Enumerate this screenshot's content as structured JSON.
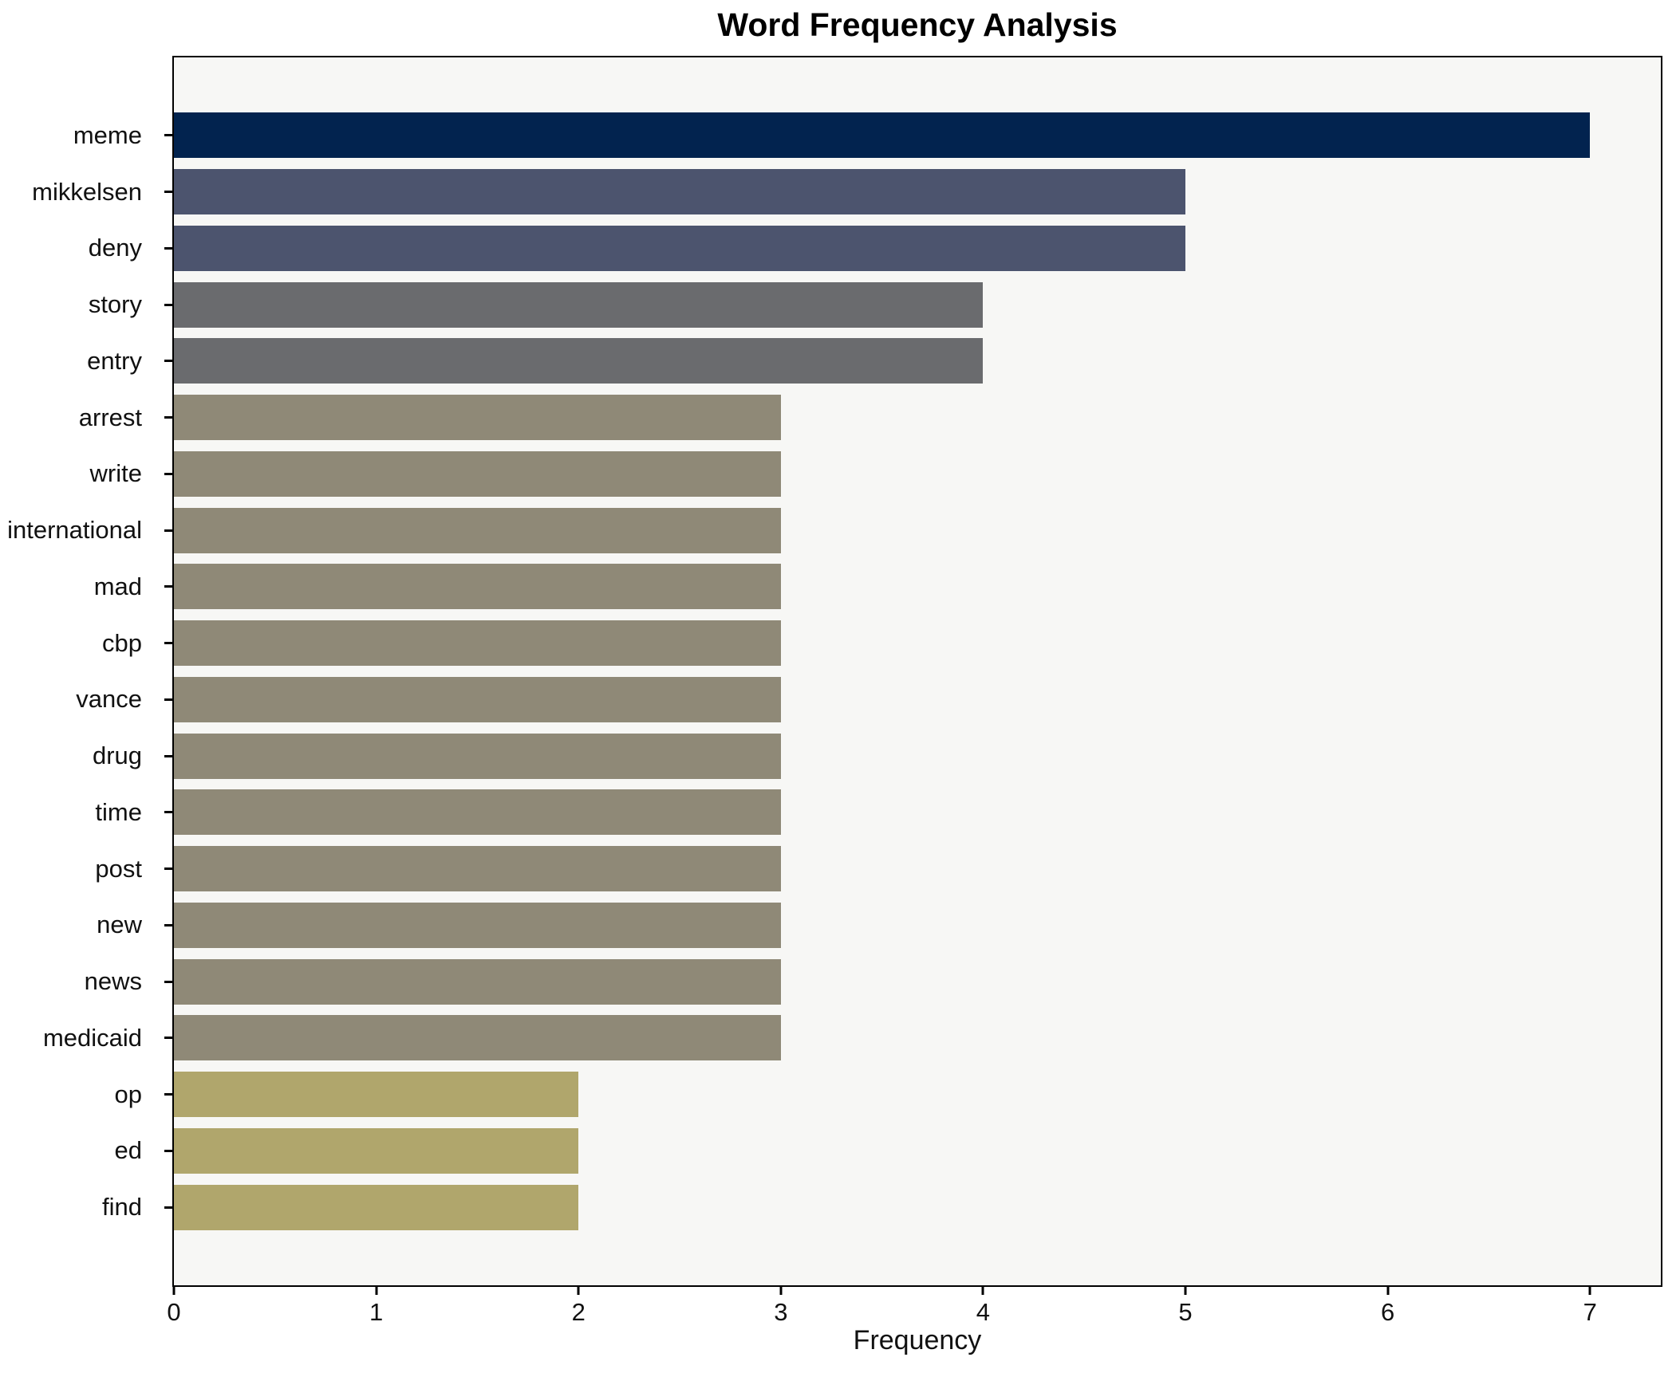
{
  "chart_data": {
    "type": "bar",
    "orientation": "horizontal",
    "title": "Word Frequency Analysis",
    "xlabel": "Frequency",
    "ylabel": "",
    "xlim": [
      0,
      7.35
    ],
    "x_ticks": [
      0,
      1,
      2,
      3,
      4,
      5,
      6,
      7
    ],
    "grid": false,
    "legend": "none",
    "categories": [
      "meme",
      "mikkelsen",
      "deny",
      "story",
      "entry",
      "arrest",
      "write",
      "international",
      "mad",
      "cbp",
      "vance",
      "drug",
      "time",
      "post",
      "new",
      "news",
      "medicaid",
      "op",
      "ed",
      "find"
    ],
    "values": [
      7,
      5,
      5,
      4,
      4,
      3,
      3,
      3,
      3,
      3,
      3,
      3,
      3,
      3,
      3,
      3,
      3,
      2,
      2,
      2
    ],
    "bar_colors": [
      "#02234f",
      "#4c546e",
      "#4c546e",
      "#6a6b6e",
      "#6a6b6e",
      "#8f8977",
      "#8f8977",
      "#8f8977",
      "#8f8977",
      "#8f8977",
      "#8f8977",
      "#8f8977",
      "#8f8977",
      "#8f8977",
      "#8f8977",
      "#8f8977",
      "#8f8977",
      "#b0a66c",
      "#b0a66c",
      "#b0a66c"
    ]
  },
  "style_colors": {
    "plot_background": "#f7f7f5",
    "figure_background": "#ffffff",
    "spine": "#000000",
    "text": "#111111"
  }
}
